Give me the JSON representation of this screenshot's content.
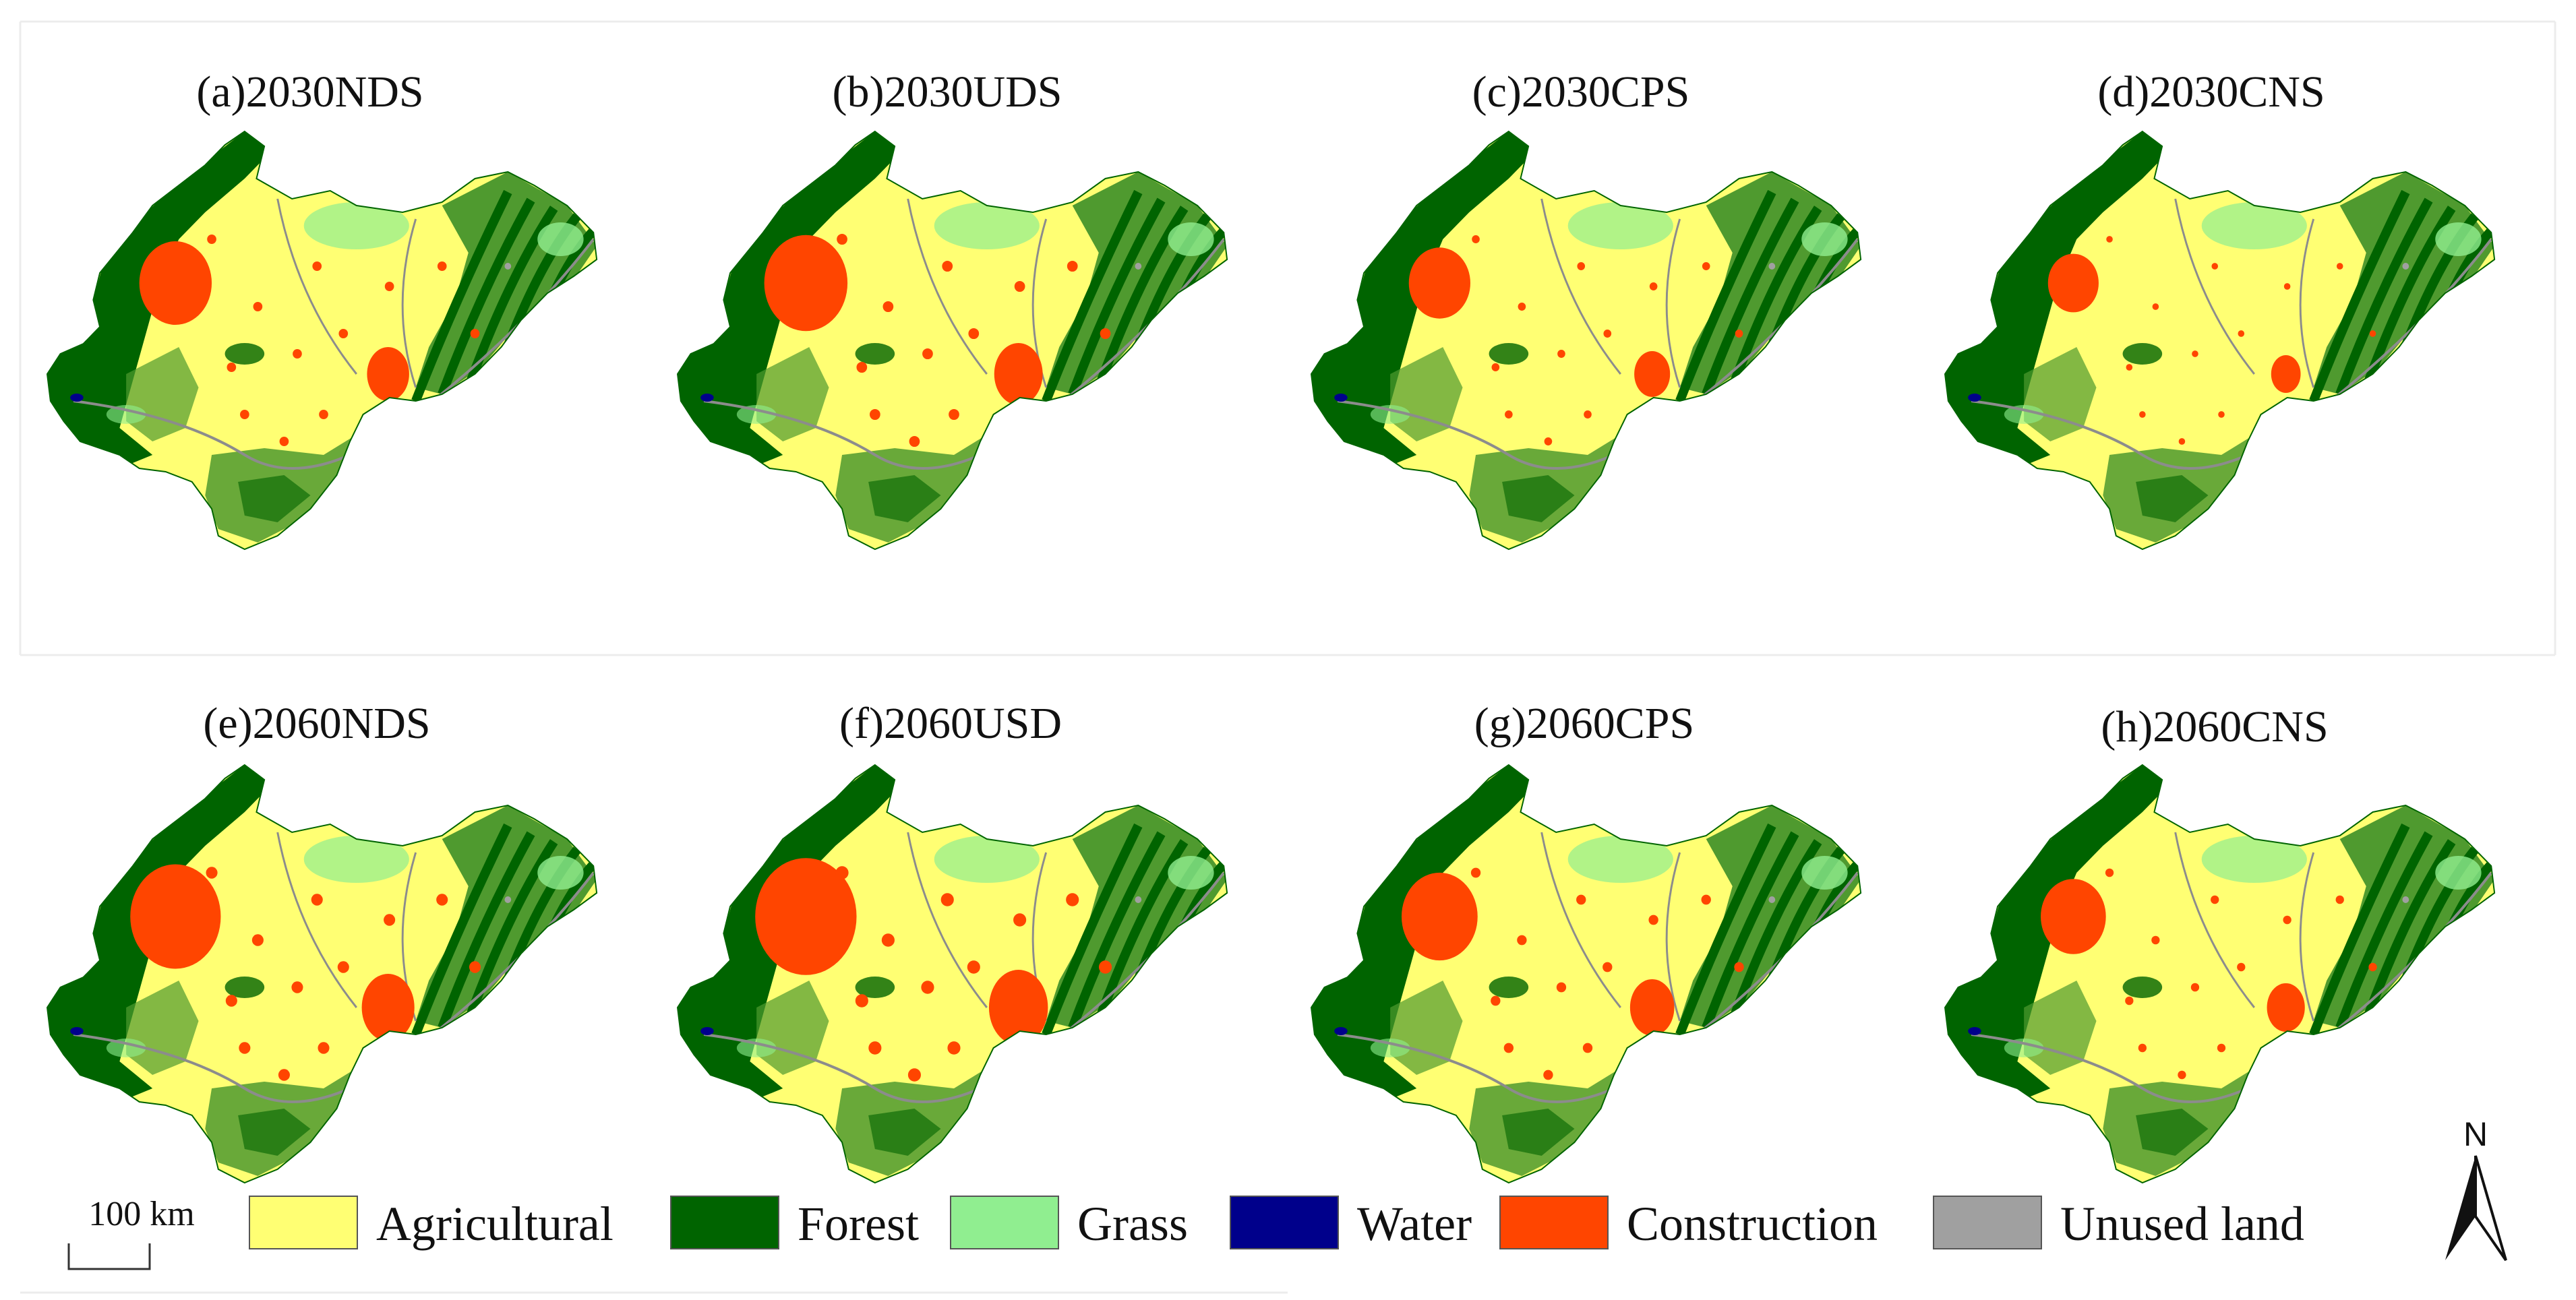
{
  "panels": [
    {
      "title": "(a)2030NDS",
      "urban_scale": 1.0
    },
    {
      "title": "(b)2030UDS",
      "urban_scale": 1.15
    },
    {
      "title": "(c)2030CPS",
      "urban_scale": 0.85
    },
    {
      "title": "(d)2030CNS",
      "urban_scale": 0.7
    },
    {
      "title": "(e)2060NDS",
      "urban_scale": 1.25
    },
    {
      "title": "(f)2060USD",
      "urban_scale": 1.4
    },
    {
      "title": "(g)2060CPS",
      "urban_scale": 1.05
    },
    {
      "title": "(h)2060CNS",
      "urban_scale": 0.9
    }
  ],
  "legend": [
    {
      "label": "Agricultural",
      "color": "#ffff73"
    },
    {
      "label": "Forest",
      "color": "#006400"
    },
    {
      "label": "Grass",
      "color": "#90ee90"
    },
    {
      "label": "Water",
      "color": "#00008b"
    },
    {
      "label": "Construction",
      "color": "#ff4500"
    },
    {
      "label": "Unused land",
      "color": "#a0a0a0"
    }
  ],
  "scale_bar": {
    "label": "100 km"
  },
  "north_arrow": {
    "label": "N"
  },
  "colors": {
    "background": "#ffffff",
    "mid_forest": "#4f9a2f",
    "river": "#8c8c8c"
  }
}
